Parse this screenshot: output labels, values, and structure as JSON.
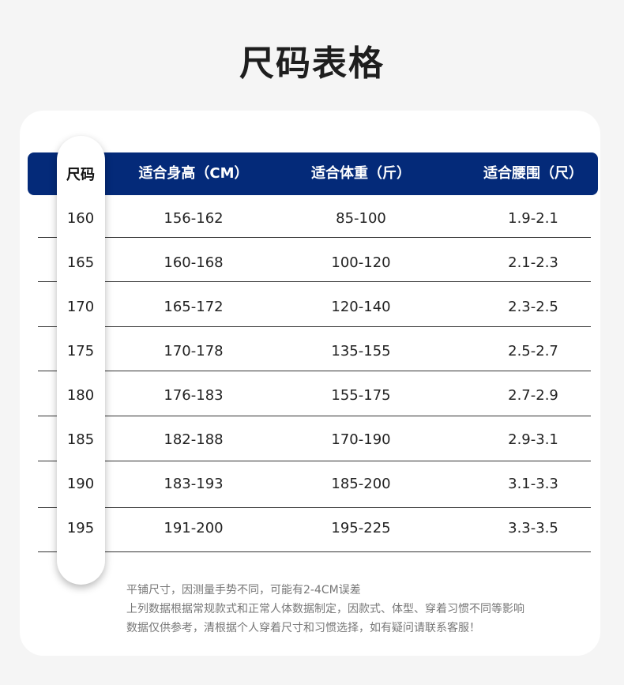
{
  "title": "尺码表格",
  "colors": {
    "header_bg": "#042a79",
    "header_text": "#ffffff"
  },
  "table": {
    "headers": [
      "尺码",
      "适合身高（CM）",
      "适合体重（斤）",
      "适合腰围（尺）"
    ],
    "rows": [
      [
        "160",
        "156-162",
        "85-100",
        "1.9-2.1"
      ],
      [
        "165",
        "160-168",
        "100-120",
        "2.1-2.3"
      ],
      [
        "170",
        "165-172",
        "120-140",
        "2.3-2.5"
      ],
      [
        "175",
        "170-178",
        "135-155",
        "2.5-2.7"
      ],
      [
        "180",
        "176-183",
        "155-175",
        "2.7-2.9"
      ],
      [
        "185",
        "182-188",
        "170-190",
        "2.9-3.1"
      ],
      [
        "190",
        "183-193",
        "185-200",
        "3.1-3.3"
      ],
      [
        "195",
        "191-200",
        "195-225",
        "3.3-3.5"
      ]
    ]
  },
  "notes": [
    "平铺尺寸，因测量手势不同，可能有2-4CM误差",
    "上列数据根据常规款式和正常人体数据制定，因款式、体型、穿着习惯不同等影响",
    "数据仅供参考，清根据个人穿着尺寸和习惯选择，如有疑问请联系客服！"
  ]
}
